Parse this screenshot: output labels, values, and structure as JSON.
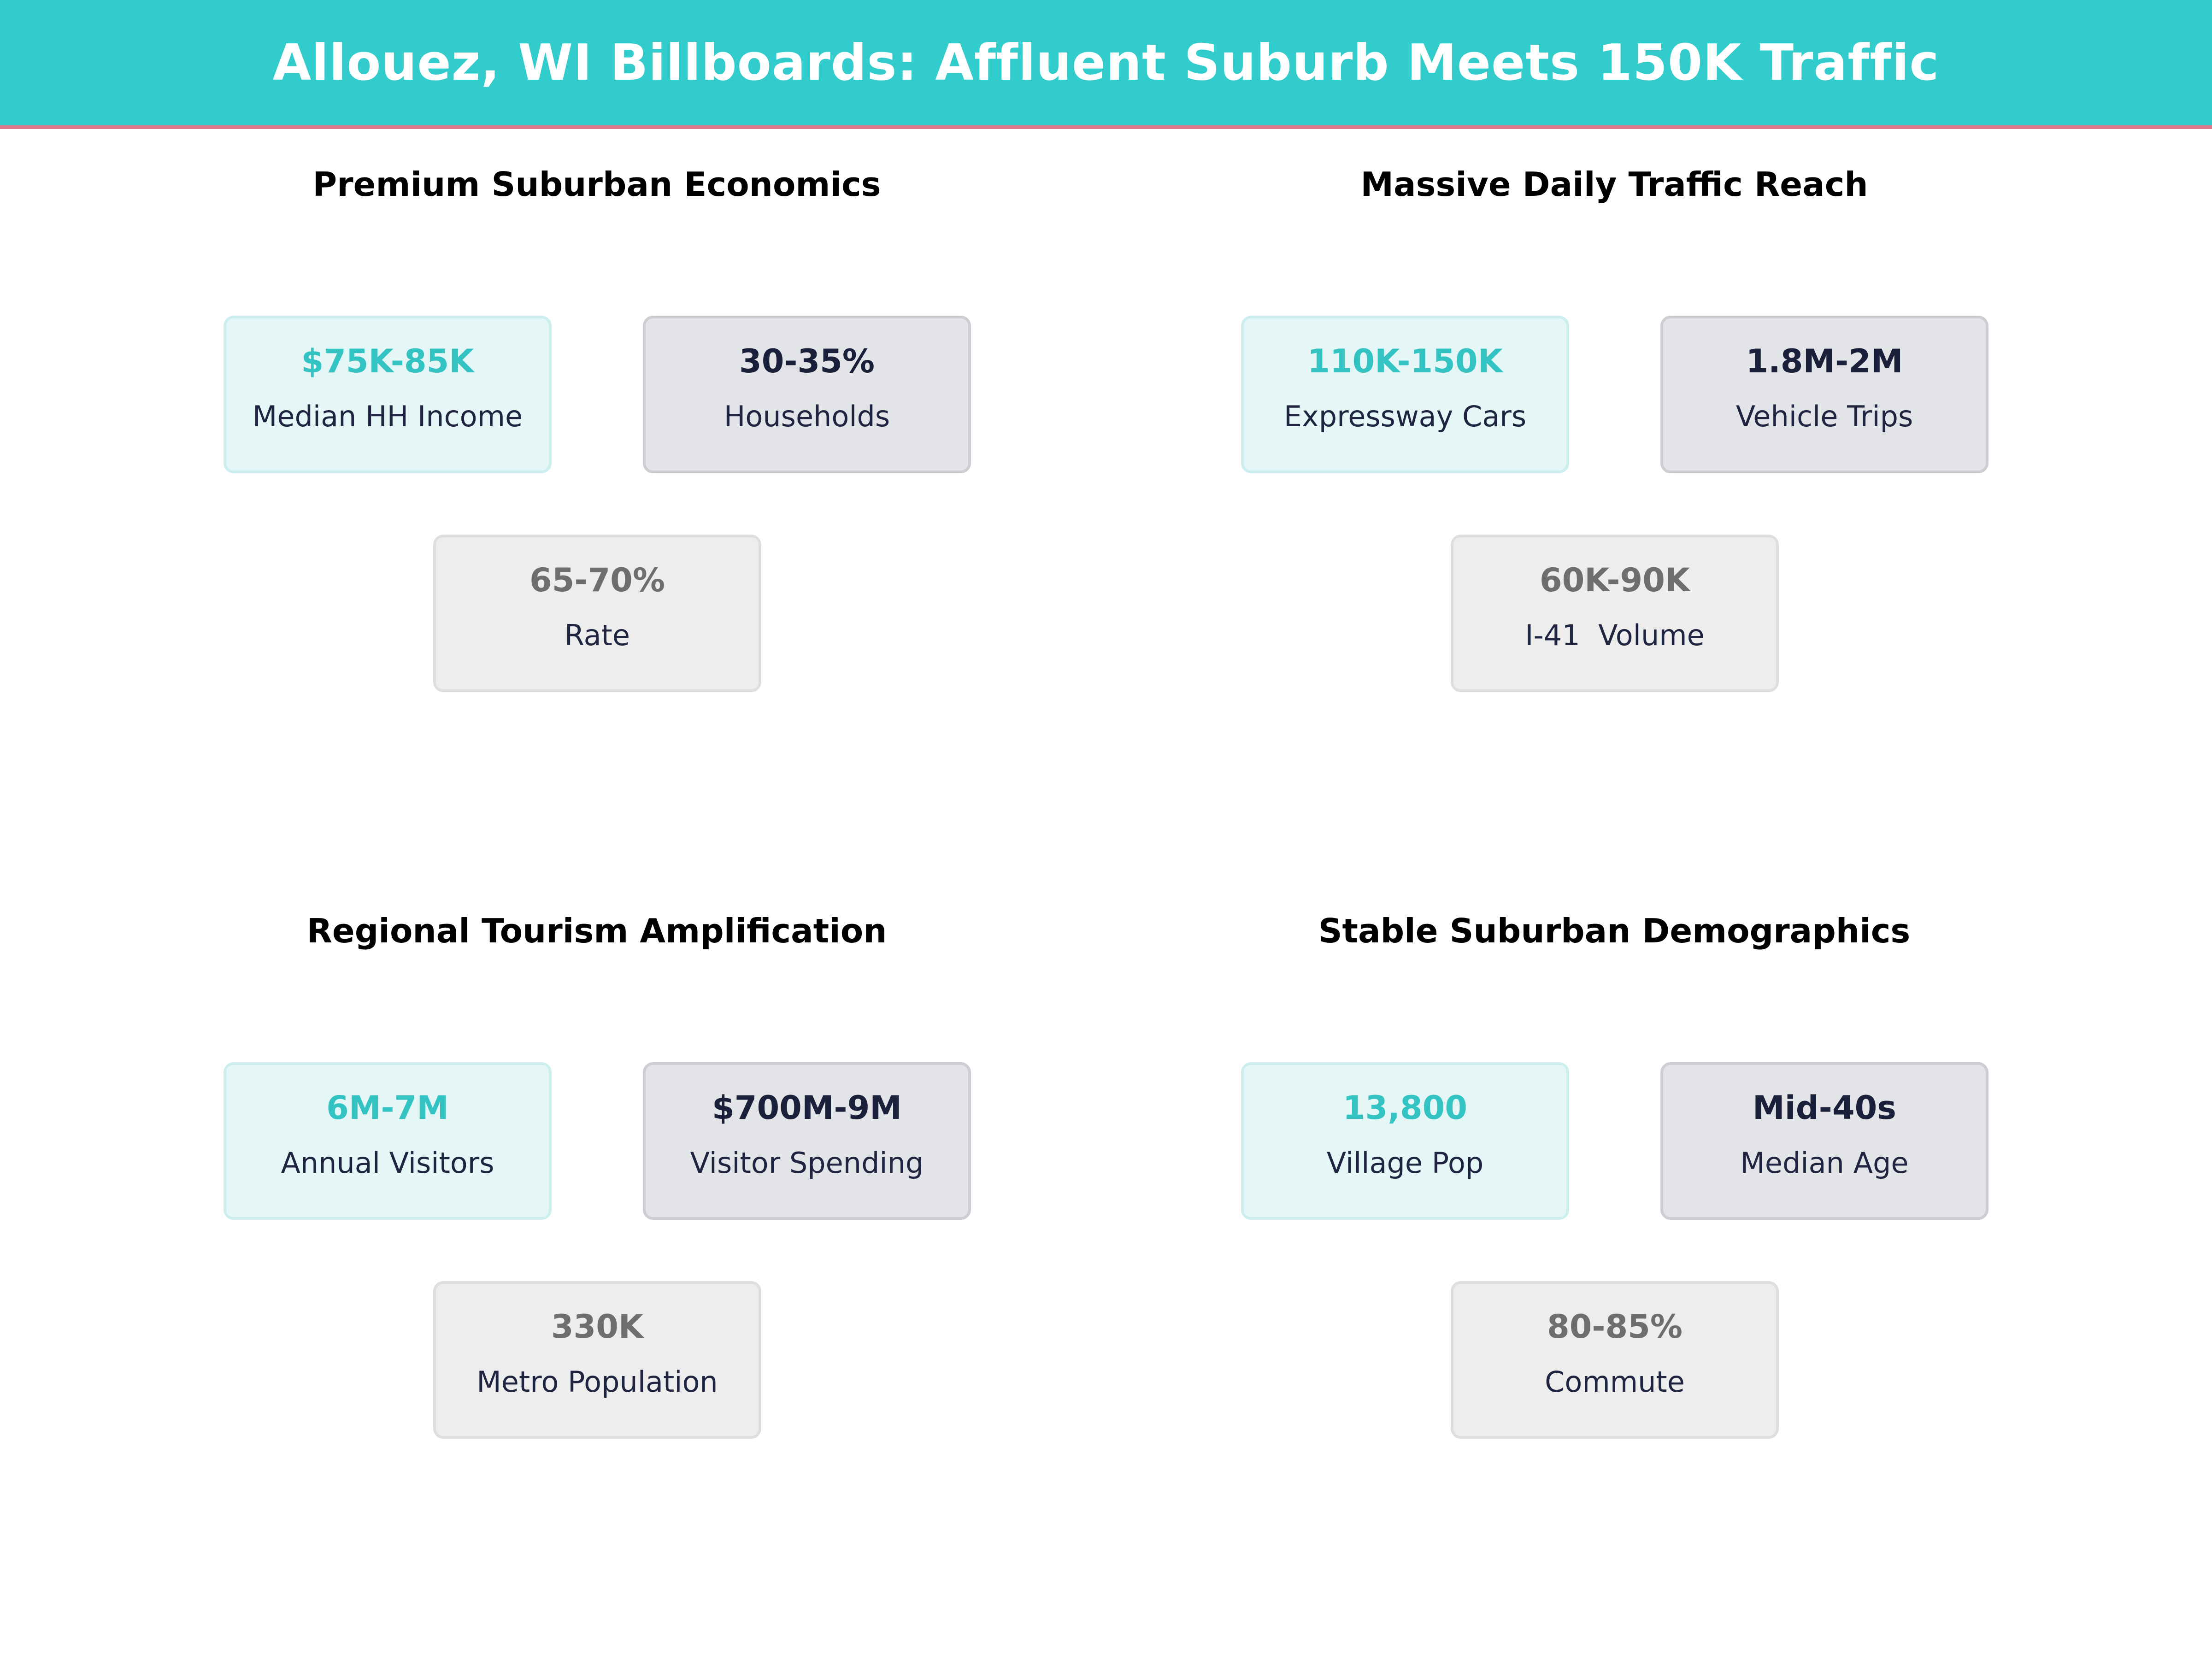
{
  "header": {
    "title": "Allouez, WI Billboards: Affluent Suburb Meets 150K Traffic",
    "bg_color": "#33cccc",
    "accent_line_color": "#e07a8a"
  },
  "colors": {
    "teal": "#33c3c3",
    "navy": "#1a1f3a",
    "grey": "#6e6e6e"
  },
  "sections": [
    {
      "title": "Premium Suburban Economics",
      "cards": [
        {
          "value": "$75K-85K",
          "label": "Median HH Income"
        },
        {
          "value": "30-35%",
          "label": "Households"
        },
        {
          "value": "65-70%",
          "label": "Rate"
        }
      ]
    },
    {
      "title": "Massive Daily Traffic Reach",
      "cards": [
        {
          "value": "110K-150K",
          "label": "Expressway Cars"
        },
        {
          "value": "1.8M-2M",
          "label": "Vehicle Trips"
        },
        {
          "value": "60K-90K",
          "label": "I-41  Volume"
        }
      ]
    },
    {
      "title": "Regional Tourism Amplification",
      "cards": [
        {
          "value": "6M-7M",
          "label": "Annual Visitors"
        },
        {
          "value": "$700M-9M",
          "label": "Visitor Spending"
        },
        {
          "value": "330K",
          "label": "Metro Population"
        }
      ]
    },
    {
      "title": "Stable Suburban Demographics",
      "cards": [
        {
          "value": "13,800",
          "label": "Village Pop"
        },
        {
          "value": "Mid-40s",
          "label": "Median Age"
        },
        {
          "value": "80-85%",
          "label": "Commute"
        }
      ]
    }
  ]
}
